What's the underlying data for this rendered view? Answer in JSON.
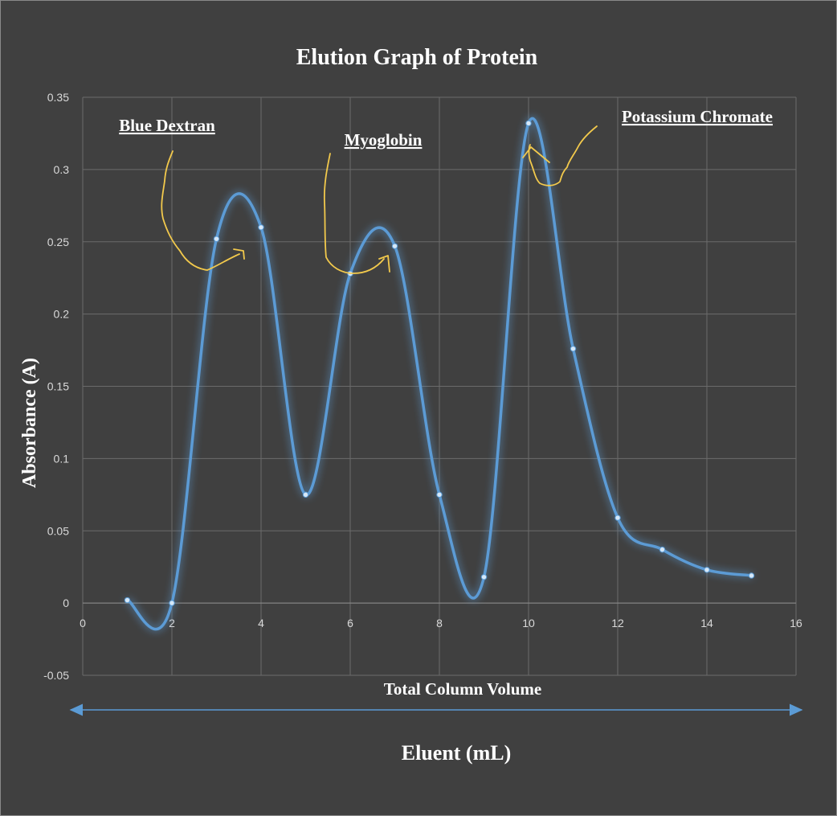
{
  "chart_data": {
    "type": "line",
    "title": "Elution Graph of Protein",
    "xlabel": "Total Column Volume",
    "xlabel_secondary": "Eluent (mL)",
    "ylabel": "Absorbance (A)",
    "xlim": [
      0,
      16
    ],
    "ylim": [
      -0.05,
      0.35
    ],
    "x_ticks": [
      "0",
      "2",
      "4",
      "6",
      "8",
      "10",
      "12",
      "14",
      "16"
    ],
    "y_ticks": [
      "-0.05",
      "0",
      "0.05",
      "0.1",
      "0.15",
      "0.2",
      "0.25",
      "0.3",
      "0.35"
    ],
    "grid": true,
    "smooth": true,
    "series": [
      {
        "name": "Absorbance",
        "color": "#5b9bd5",
        "x": [
          1,
          2,
          3,
          4,
          5,
          6,
          7,
          8,
          9,
          10,
          11,
          12,
          13,
          14,
          15
        ],
        "y": [
          0.002,
          0.0,
          0.252,
          0.26,
          0.075,
          0.228,
          0.247,
          0.075,
          0.018,
          0.332,
          0.176,
          0.059,
          0.037,
          0.023,
          0.019
        ]
      }
    ],
    "annotations": [
      {
        "text": "Blue Dextran",
        "x": 3.6,
        "y": 0.244
      },
      {
        "text": "Myoglobin",
        "x": 6.9,
        "y": 0.24
      },
      {
        "text": "Potassium Chromate",
        "x": 10.1,
        "y": 0.31
      }
    ],
    "annotation_color": "#f2c94c"
  }
}
